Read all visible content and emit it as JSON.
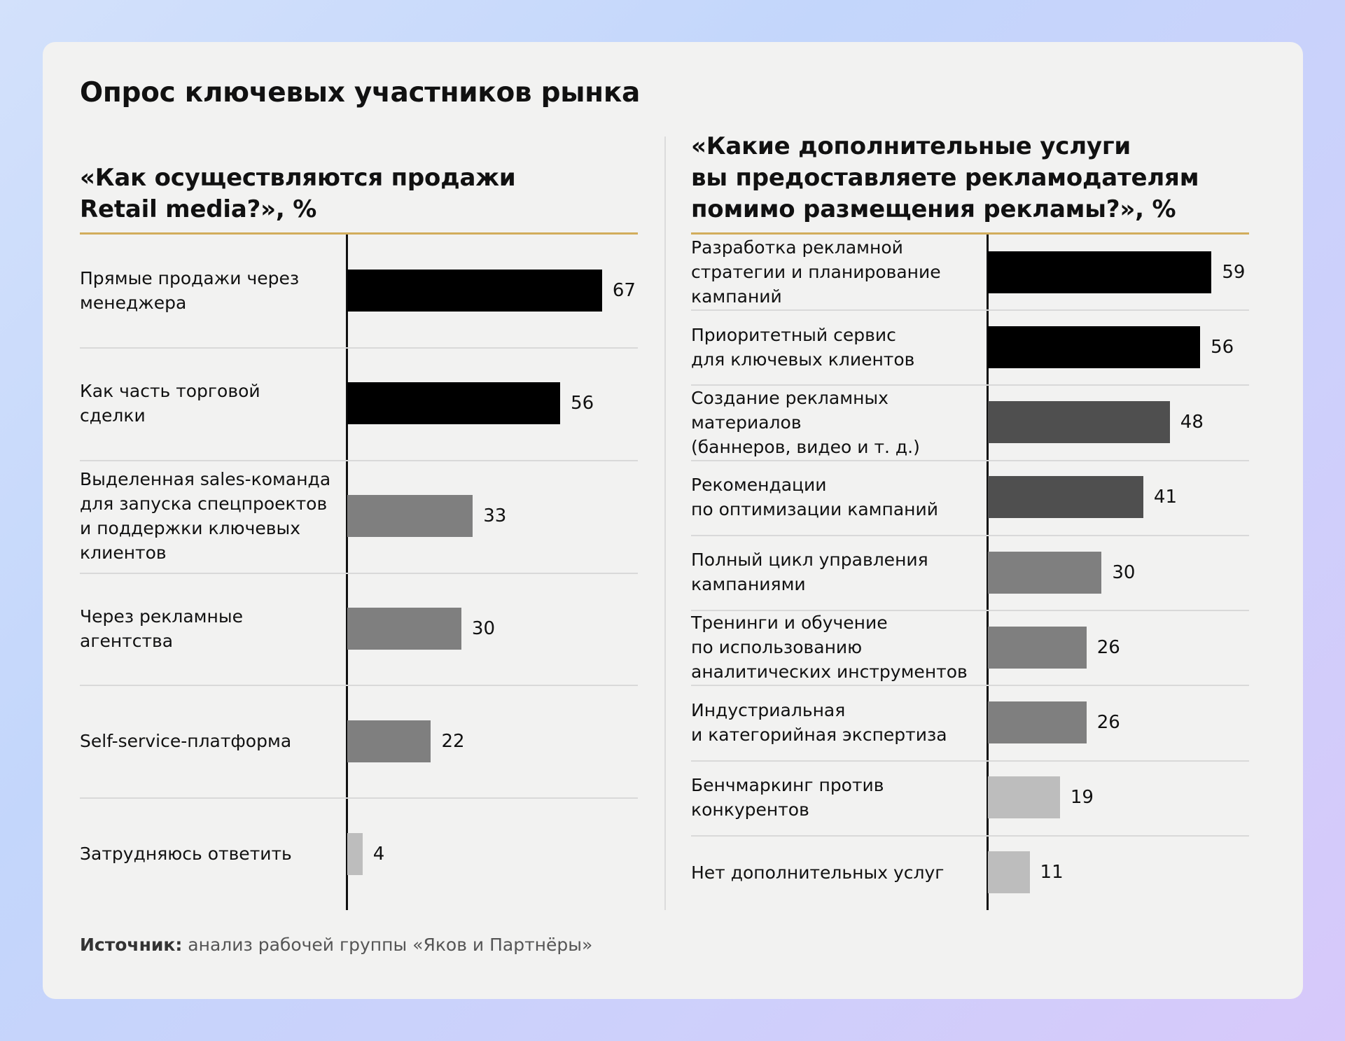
{
  "page_title": "Опрос ключевых участников рынка",
  "source": {
    "label": "Источник:",
    "text": " анализ рабочей группы «Яков и Партнёры»"
  },
  "colors": {
    "black": "#000000",
    "dark": "#4f4f4f",
    "gray": "#7f7f7f",
    "light": "#bdbdbd",
    "accent": "#d2ad5c"
  },
  "chart_data": [
    {
      "type": "bar",
      "orientation": "horizontal",
      "title": "«Как осуществляются продажи\nRetail media?», %",
      "xlim": [
        0,
        72
      ],
      "categories": [
        "Прямые продажи через\nменеджера",
        "Как часть торговой\nсделки",
        "Выделенная sales-команда\nдля запуска спецпроектов\nи поддержки ключевых\nклиентов",
        "Через рекламные\nагентства",
        "Self-service-платформа",
        "Затрудняюсь ответить"
      ],
      "values": [
        67,
        56,
        33,
        30,
        22,
        4
      ],
      "bar_colors": [
        "#000000",
        "#000000",
        "#7f7f7f",
        "#7f7f7f",
        "#7f7f7f",
        "#bdbdbd"
      ]
    },
    {
      "type": "bar",
      "orientation": "horizontal",
      "title": "«Какие дополнительные услуги\nвы предоставляете рекламодателям\nпомимо размещения рекламы?», %",
      "xlim": [
        0,
        63
      ],
      "categories": [
        "Разработка рекламной\nстратегии и планирование\nкампаний",
        "Приоритетный сервис\nдля ключевых клиентов",
        "Создание рекламных\nматериалов\n(баннеров, видео и т. д.)",
        "Рекомендации\nпо оптимизации кампаний",
        "Полный цикл управления\nкампаниями",
        "Тренинги и обучение\nпо использованию\nаналитических инструментов",
        "Индустриальная\nи категорийная экспертиза",
        "Бенчмаркинг против\nконкурентов",
        "Нет дополнительных услуг"
      ],
      "values": [
        59,
        56,
        48,
        41,
        30,
        26,
        26,
        19,
        11
      ],
      "bar_colors": [
        "#000000",
        "#000000",
        "#4f4f4f",
        "#4f4f4f",
        "#7f7f7f",
        "#7f7f7f",
        "#7f7f7f",
        "#bdbdbd",
        "#bdbdbd"
      ]
    }
  ]
}
